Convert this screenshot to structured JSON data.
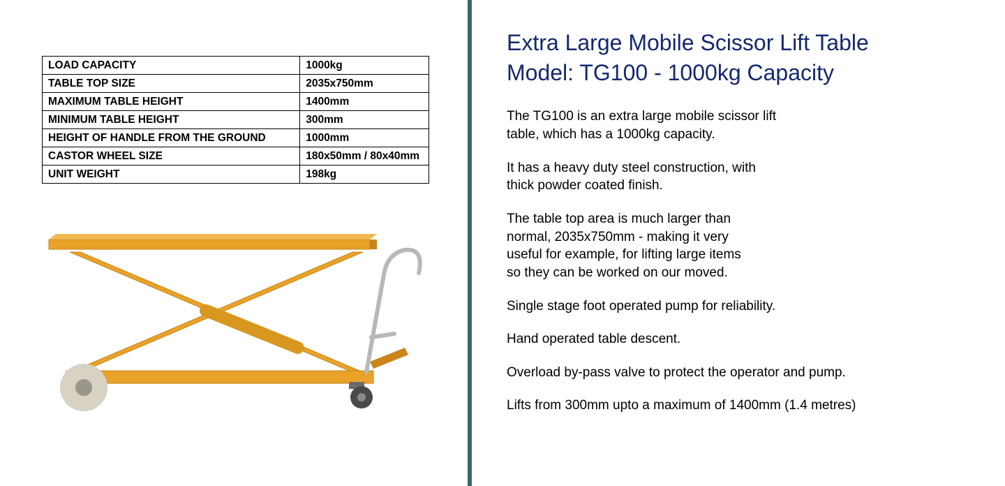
{
  "specs": {
    "rows": [
      {
        "label": "LOAD CAPACITY",
        "value": "1000kg"
      },
      {
        "label": "TABLE TOP SIZE",
        "value": "2035x750mm"
      },
      {
        "label": "MAXIMUM TABLE HEIGHT",
        "value": "1400mm"
      },
      {
        "label": "MINIMUM TABLE HEIGHT",
        "value": "300mm"
      },
      {
        "label": "HEIGHT OF HANDLE FROM THE GROUND",
        "value": "1000mm"
      },
      {
        "label": "CASTOR WHEEL SIZE",
        "value": "180x50mm / 80x40mm"
      },
      {
        "label": "UNIT WEIGHT",
        "value": "198kg"
      }
    ],
    "border_color": "#000000",
    "text_color": "#000000",
    "font_size": 15.5,
    "font_weight": "bold"
  },
  "product_image": {
    "alt": "scissor-lift-table",
    "colors": {
      "body": "#e8a328",
      "body_edge": "#c9841a",
      "wheel_outer": "#d8d2c4",
      "wheel_inner": "#4a4a4a",
      "handle": "#b8b8b8",
      "caster": "#6a6a6a"
    }
  },
  "title": {
    "line1": "Extra Large Mobile Scissor Lift Table",
    "line2": "Model: TG100 - 1000kg Capacity",
    "color": "#14286e",
    "font_size": 32
  },
  "description": {
    "paragraphs": [
      "The TG100 is an extra large mobile scissor lift table, which has a 1000kg capacity.",
      "It has a heavy duty steel construction, with thick powder coated finish.",
      "The table top area is much larger than normal, 2035x750mm - making it very useful for example, for lifting large items so they can be worked on our moved.",
      "Single stage foot operated pump for reliability.",
      "Hand operated table descent.",
      "Overload by-pass valve to protect the operator and pump.",
      "Lifts from 300mm upto a maximum of 1400mm (1.4 metres)"
    ],
    "break_widths": [
      390,
      390,
      360,
      700,
      700,
      700,
      700
    ],
    "color": "#000000",
    "font_size": 19
  },
  "divider_color": "#3e6670"
}
